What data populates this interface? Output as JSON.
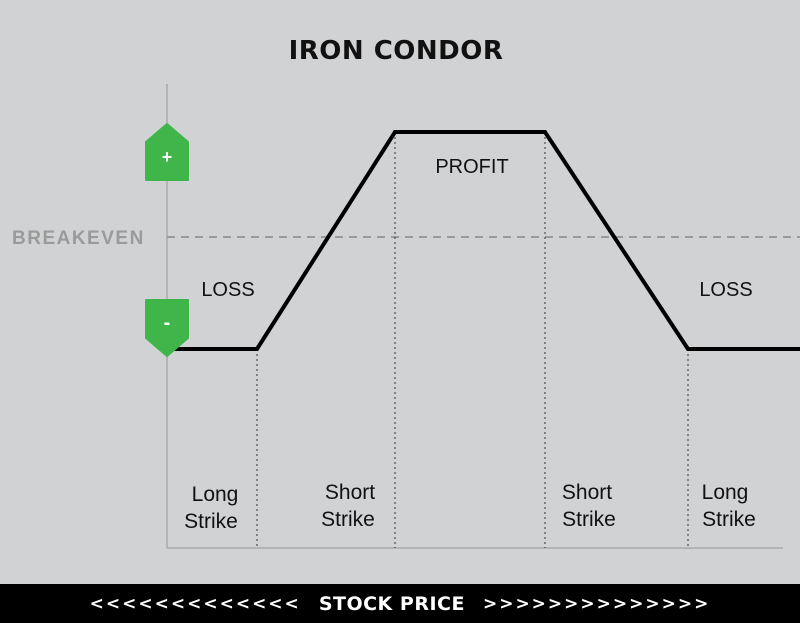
{
  "title": "IRON CONDOR",
  "breakeven_label": "BREAKEVEN",
  "regions": {
    "profit": "PROFIT",
    "loss_left": "LOSS",
    "loss_right": "LOSS"
  },
  "markers": {
    "plus": "+",
    "minus": "-"
  },
  "strikes": [
    {
      "line1": "Long",
      "line2": "Strike"
    },
    {
      "line1": "Short",
      "line2": "Strike"
    },
    {
      "line1": "Short",
      "line2": "Strike"
    },
    {
      "line1": "Long",
      "line2": "Strike"
    }
  ],
  "footer": {
    "left_arrows": "<<<<<<<<<<<<<",
    "label": "STOCK PRICE",
    "right_arrows": ">>>>>>>>>>>>>>"
  },
  "colors": {
    "background": "#d1d2d4",
    "marker_green": "#3fb54a",
    "line": "#000000",
    "breakeven": "#9a9a9a",
    "footer": "#000000"
  }
}
